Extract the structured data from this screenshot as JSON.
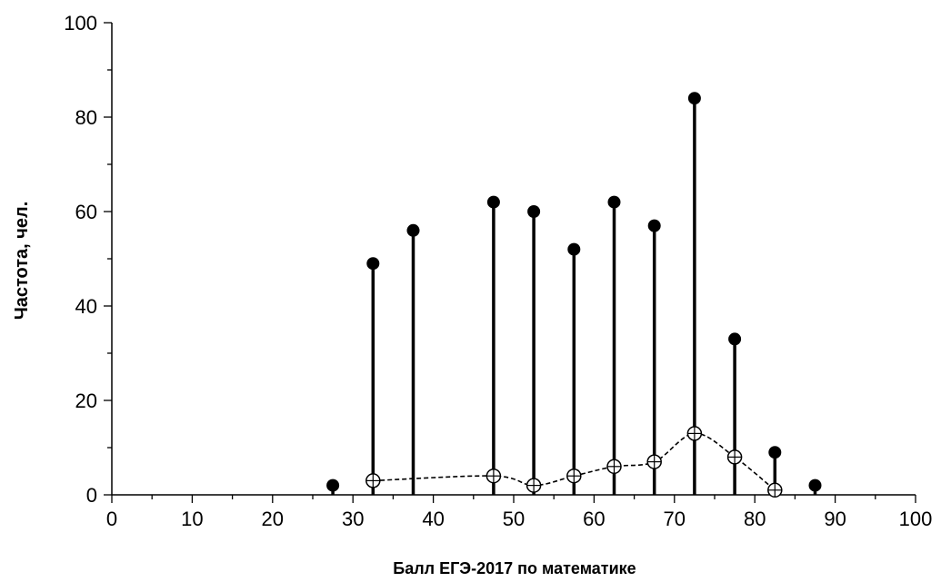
{
  "chart_data": {
    "type": "scatter",
    "xlabel": "Балл ЕГЭ-2017 по математике",
    "ylabel": "Частота, чел.",
    "xlim": [
      0,
      100
    ],
    "ylim": [
      0,
      100
    ],
    "x_major_ticks": [
      0,
      10,
      20,
      30,
      40,
      50,
      60,
      70,
      80,
      90,
      100
    ],
    "x_minor_step": 5,
    "y_major_ticks": [
      0,
      20,
      40,
      60,
      80,
      100
    ],
    "y_minor_step": 10,
    "grid": false,
    "series": [
      {
        "style": "stem",
        "marker": "filled-circle",
        "color": "#000000",
        "x": [
          27.5,
          32.5,
          37.5,
          47.5,
          52.5,
          57.5,
          62.5,
          67.5,
          72.5,
          77.5,
          82.5,
          87.5
        ],
        "y": [
          2,
          49,
          56,
          62,
          60,
          52,
          62,
          57,
          84,
          33,
          9,
          2
        ]
      },
      {
        "style": "dashed-line",
        "marker": "open-circle-crosshair",
        "color": "#000000",
        "x": [
          32.5,
          47.5,
          52.5,
          57.5,
          62.5,
          67.5,
          72.5,
          77.5,
          82.5
        ],
        "y": [
          3,
          4,
          2,
          4,
          6,
          7,
          13,
          8,
          1
        ]
      }
    ]
  }
}
